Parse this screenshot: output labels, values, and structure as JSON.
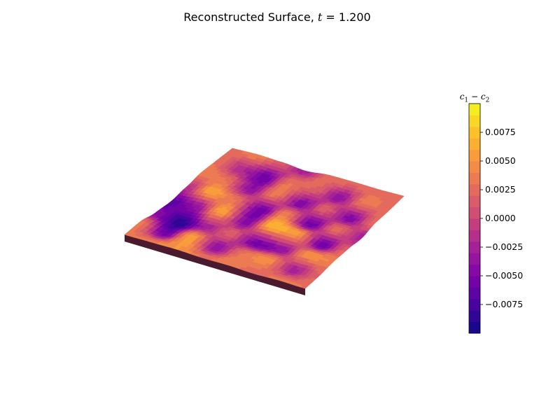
{
  "figure": {
    "title_prefix": "Reconstructed Surface,",
    "title_var": "t",
    "title_eq": "= 1.200"
  },
  "chart_data": {
    "type": "heatmap",
    "title": "Reconstructed Surface, t = 1.200",
    "colorbar": {
      "label_var1": "c",
      "label_sub1": "1",
      "label_op": " − ",
      "label_var2": "c",
      "label_sub2": "2",
      "colormap": "plasma",
      "min": -0.01,
      "max": 0.01,
      "levels": 20,
      "ticks": [
        0.0075,
        0.005,
        0.0025,
        0.0,
        -0.0025,
        -0.005,
        -0.0075
      ],
      "tick_labels": [
        "0.0075",
        "0.0050",
        "0.0025",
        "0.0000",
        "−0.0025",
        "−0.0050",
        "−0.0075"
      ]
    },
    "surface_grid": [
      [
        0.003,
        0.004,
        -0.004,
        -0.007,
        -0.002,
        0.004,
        0.003,
        0.002
      ],
      [
        0.004,
        -0.006,
        -0.009,
        -0.004,
        0.006,
        0.003,
        -0.002,
        0.004
      ],
      [
        0.005,
        0.006,
        -0.003,
        0.006,
        0.003,
        -0.004,
        -0.006,
        0.002
      ],
      [
        0.003,
        -0.004,
        0.002,
        -0.005,
        -0.006,
        0.004,
        0.003,
        -0.003
      ],
      [
        0.004,
        0.003,
        -0.006,
        0.007,
        0.004,
        -0.005,
        0.002,
        0.003
      ],
      [
        0.002,
        0.005,
        -0.004,
        0.006,
        -0.006,
        0.002,
        -0.004,
        0.003
      ],
      [
        0.004,
        -0.003,
        0.005,
        -0.006,
        0.003,
        -0.005,
        0.004,
        0.002
      ],
      [
        0.003,
        0.002,
        0.004,
        0.002,
        -0.003,
        0.003,
        0.002,
        0.003
      ]
    ]
  }
}
